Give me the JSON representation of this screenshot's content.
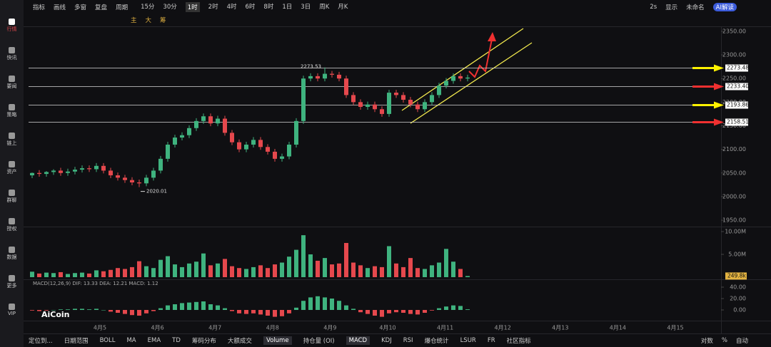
{
  "sidebar": [
    "行情",
    "快讯",
    "要闻",
    "策略",
    "链上",
    "资产",
    "群聊",
    "授权",
    "数据",
    "更多",
    "VIP"
  ],
  "toolbar": {
    "left": [
      "指标",
      "画线",
      "多窗",
      "复盘",
      "周期"
    ],
    "periods": [
      "15分",
      "30分",
      "1时",
      "2时",
      "4时",
      "6时",
      "8时",
      "1日",
      "3日",
      "周K",
      "月K"
    ],
    "right": [
      "2s",
      "显示",
      "未命名",
      "AI解读"
    ],
    "draw": [
      "主",
      "大",
      "筹"
    ]
  },
  "bottom": {
    "left": [
      "定位到...",
      "日期范围",
      "BOLL",
      "MA",
      "EMA",
      "TD",
      "筹码分布",
      "大额成交",
      "Volume",
      "持仓量 (OI)",
      "MACD",
      "KDJ",
      "RSI",
      "爆仓统计",
      "LSUR",
      "FR",
      "社区指标"
    ],
    "right": [
      "对数",
      "%",
      "自动"
    ]
  },
  "watermark": "AiCoin",
  "chart_data": {
    "type": "candlestick",
    "open": [
      2045,
      2050,
      2048,
      2052,
      2055,
      2050,
      2053,
      2057,
      2060,
      2058,
      2065,
      2055,
      2045,
      2040,
      2035,
      2030,
      2028,
      2040,
      2055,
      2080,
      2110,
      2125,
      2130,
      2145,
      2160,
      2170,
      2155,
      2165,
      2135,
      2115,
      2100,
      2110,
      2120,
      2105,
      2095,
      2080,
      2085,
      2110,
      2160,
      2250,
      2255,
      2250,
      2260,
      2258,
      2250,
      2215,
      2200,
      2190,
      2195,
      2185,
      2175,
      2220,
      2215,
      2205,
      2195,
      2185,
      2200,
      2215,
      2235,
      2245,
      2255,
      2250
    ],
    "high": [
      2051,
      2056,
      2054,
      2058,
      2061,
      2059,
      2063,
      2066,
      2066,
      2071,
      2071,
      2061,
      2051,
      2046,
      2041,
      2036,
      2046,
      2061,
      2086,
      2116,
      2131,
      2136,
      2151,
      2166,
      2176,
      2176,
      2171,
      2171,
      2141,
      2121,
      2116,
      2126,
      2126,
      2111,
      2101,
      2091,
      2116,
      2166,
      2256,
      2261,
      2261,
      2273.53,
      2266,
      2264,
      2256,
      2221,
      2206,
      2201,
      2201,
      2191,
      2226,
      2226,
      2221,
      2211,
      2201,
      2206,
      2221,
      2241,
      2251,
      2261,
      2261,
      2258
    ],
    "low": [
      2039,
      2042,
      2042,
      2046,
      2044,
      2044,
      2047,
      2051,
      2052,
      2052,
      2049,
      2039,
      2034,
      2029,
      2024,
      2020.01,
      2022,
      2034,
      2049,
      2074,
      2104,
      2119,
      2124,
      2139,
      2154,
      2149,
      2149,
      2129,
      2109,
      2094,
      2094,
      2104,
      2099,
      2089,
      2074,
      2074,
      2079,
      2104,
      2154,
      2244,
      2244,
      2244,
      2252,
      2244,
      2209,
      2194,
      2184,
      2184,
      2179,
      2169,
      2169,
      2209,
      2199,
      2189,
      2179,
      2179,
      2194,
      2209,
      2229,
      2239,
      2244,
      2244
    ],
    "close": [
      2050,
      2048,
      2052,
      2055,
      2050,
      2053,
      2057,
      2060,
      2058,
      2065,
      2055,
      2045,
      2040,
      2035,
      2030,
      2028,
      2040,
      2055,
      2080,
      2110,
      2125,
      2130,
      2145,
      2160,
      2170,
      2155,
      2165,
      2135,
      2115,
      2100,
      2110,
      2120,
      2105,
      2095,
      2080,
      2085,
      2110,
      2160,
      2250,
      2255,
      2250,
      2260,
      2258,
      2250,
      2215,
      2200,
      2190,
      2195,
      2185,
      2175,
      2220,
      2215,
      2205,
      2195,
      2185,
      2200,
      2215,
      2235,
      2245,
      2255,
      2250,
      2252
    ],
    "ylim": [
      1941,
      2371
    ],
    "yticks": [
      {
        "value": 2350,
        "label": "2350.00"
      },
      {
        "value": 2300,
        "label": "2300.00"
      },
      {
        "value": 2250,
        "label": "2250.00"
      },
      {
        "value": 2200,
        "label": "2200.00"
      },
      {
        "value": 2150,
        "label": "2150.00"
      },
      {
        "value": 2100,
        "label": "2100.00"
      },
      {
        "value": 2050,
        "label": "2050.00"
      },
      {
        "value": 2000,
        "label": "2000.00"
      },
      {
        "value": 1950,
        "label": "1950.00"
      }
    ],
    "levels": [
      {
        "value": 2273.48,
        "label": "2273.48",
        "arrow": "#fff200"
      },
      {
        "value": 2233.4,
        "label": "2233.40",
        "arrow": "#f03030"
      },
      {
        "value": 2193.86,
        "label": "2193.86",
        "arrow": "#fff200"
      },
      {
        "value": 2158.51,
        "label": "2158.51",
        "arrow": "#f03030"
      }
    ],
    "up_color": "#3fb37f",
    "down_color": "#e5484d",
    "volume": [
      1.2,
      0.8,
      1.0,
      0.9,
      1.1,
      0.7,
      0.9,
      1.0,
      0.8,
      1.5,
      1.3,
      1.6,
      2.0,
      1.8,
      2.2,
      3.5,
      2.4,
      2.0,
      3.8,
      4.6,
      2.8,
      2.2,
      3.0,
      3.4,
      5.2,
      2.6,
      3.0,
      4.0,
      2.4,
      2.0,
      1.8,
      2.2,
      2.6,
      2.0,
      2.8,
      3.2,
      4.5,
      6.0,
      9.2,
      5.0,
      3.6,
      4.2,
      2.8,
      3.0,
      7.5,
      3.2,
      2.6,
      2.0,
      2.4,
      2.2,
      6.8,
      3.0,
      2.2,
      4.2,
      2.0,
      1.8,
      2.6,
      3.2,
      6.2,
      3.4,
      1.8,
      0.2498
    ],
    "volume_ylim": [
      0,
      10.7
    ],
    "volume_ticks": [
      {
        "value": 10,
        "label": "10.00M"
      },
      {
        "value": 5,
        "label": "5.00M"
      }
    ],
    "volume_last": {
      "value": 0.2498,
      "label": "249.8k"
    },
    "macd_hist": [
      -1,
      -2,
      -1,
      0,
      1,
      1,
      2,
      2,
      1,
      2,
      0,
      -3,
      -5,
      -7,
      -9,
      -10,
      -6,
      -2,
      3,
      8,
      10,
      12,
      13,
      14,
      15,
      10,
      8,
      3,
      -2,
      -6,
      -7,
      -6,
      -8,
      -10,
      -12,
      -11,
      -6,
      4,
      16,
      22,
      24,
      22,
      20,
      16,
      8,
      2,
      -4,
      -7,
      -10,
      -12,
      -6,
      -4,
      -5,
      -7,
      -8,
      -5,
      -1,
      3,
      6,
      8,
      7,
      1.12
    ],
    "macd_ylim": [
      -13.75,
      48.75
    ],
    "macd_ticks": [
      {
        "value": 40,
        "label": "40.00"
      },
      {
        "value": 20,
        "label": "20.00"
      },
      {
        "value": 0,
        "label": "0.00"
      }
    ],
    "macd_legend": "MACD(12,26,9)  DIF: 13.33  DEA: 12.21  MACD: 1.12",
    "x_labels": [
      "4月5",
      "4月6",
      "4月7",
      "4月8",
      "4月9",
      "4月10",
      "4月11",
      "4月12",
      "4月13",
      "4月14",
      "4月15"
    ]
  }
}
